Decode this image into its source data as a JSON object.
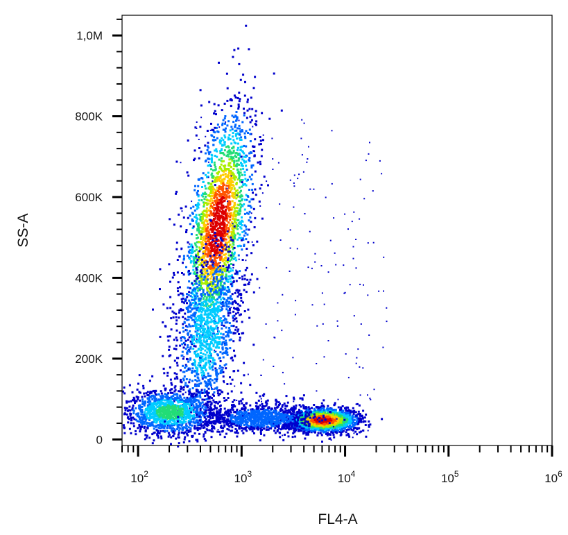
{
  "chart_data": {
    "type": "scatter",
    "subtype": "flow-cytometry-density-dot-plot",
    "title": "",
    "xlabel": "FL4-A",
    "ylabel": "SS-A",
    "x_scale": "log",
    "y_scale": "linear",
    "xlim": [
      70,
      1000000
    ],
    "ylim": [
      -15000,
      1050000
    ],
    "x_ticks": [
      {
        "value": 100,
        "base": "10",
        "exp": "2"
      },
      {
        "value": 1000,
        "base": "10",
        "exp": "3"
      },
      {
        "value": 10000,
        "base": "10",
        "exp": "4"
      },
      {
        "value": 100000,
        "base": "10",
        "exp": "5"
      },
      {
        "value": 1000000,
        "base": "10",
        "exp": "6"
      }
    ],
    "y_ticks": [
      {
        "value": 0,
        "label": "0"
      },
      {
        "value": 200000,
        "label": "200K"
      },
      {
        "value": 400000,
        "label": "400K"
      },
      {
        "value": 600000,
        "label": "600K"
      },
      {
        "value": 800000,
        "label": "800K"
      },
      {
        "value": 1000000,
        "label": "1,0M"
      }
    ],
    "color_map": [
      "#0000cc",
      "#0066ff",
      "#00ccff",
      "#22dd77",
      "#aaee00",
      "#ffcc00",
      "#ff5500",
      "#dd0000"
    ],
    "populations": [
      {
        "center_x": 580,
        "center_y": 530000,
        "spread_log_x": 0.16,
        "spread_y": 120000,
        "tilt": 0.55,
        "peak_density": 1.0
      },
      {
        "center_x": 450,
        "center_y": 260000,
        "spread_log_x": 0.17,
        "spread_y": 110000,
        "tilt": 0.3,
        "peak_density": 0.35
      },
      {
        "center_x": 6000,
        "center_y": 50000,
        "spread_log_x": 0.16,
        "spread_y": 14000,
        "tilt": 0.0,
        "peak_density": 1.0
      },
      {
        "center_x": 200,
        "center_y": 70000,
        "spread_log_x": 0.22,
        "spread_y": 28000,
        "tilt": 0.0,
        "peak_density": 0.45
      },
      {
        "center_x": 1500,
        "center_y": 55000,
        "spread_log_x": 0.25,
        "spread_y": 18000,
        "tilt": 0.0,
        "peak_density": 0.25
      }
    ],
    "grid": false,
    "legend": "none"
  }
}
